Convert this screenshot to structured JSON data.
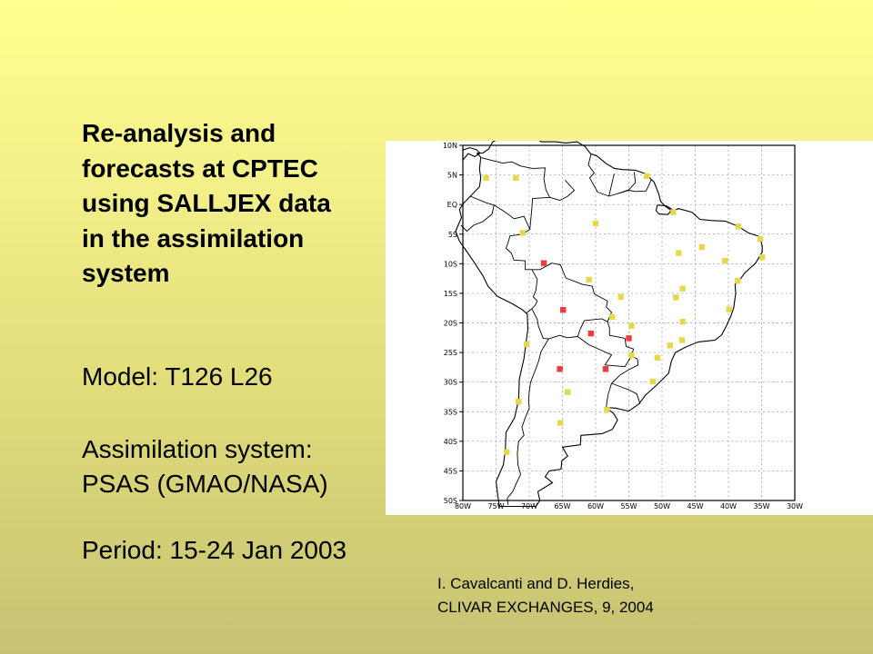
{
  "slide": {
    "title_lines": [
      "Re-analysis and",
      "forecasts at CPTEC",
      "using SALLJEX data",
      "in the assimilation",
      "system"
    ],
    "model": "Model:  T126 L26",
    "assimilation_lines": [
      "Assimilation system:",
      "PSAS (GMAO/NASA)"
    ],
    "period": "Period: 15-24 Jan 2003",
    "citation_lines": [
      "I. Cavalcanti and D. Herdies,",
      "CLIVAR EXCHANGES, 9, 2004"
    ]
  },
  "map": {
    "lat_labels": [
      "10N",
      "5N",
      "EQ",
      "5S",
      "10S",
      "15S",
      "20S",
      "25S",
      "30S",
      "35S",
      "40S",
      "45S",
      "50S"
    ],
    "lon_labels": [
      "80W",
      "75W",
      "70W",
      "65W",
      "60W",
      "55W",
      "50W",
      "45W",
      "40W",
      "35W",
      "30W"
    ],
    "colors": {
      "yellow": "#e6d84a",
      "red": "#ee3b3b"
    },
    "stations": [
      {
        "lon": -76.5,
        "lat": 4.5,
        "c": "yellow"
      },
      {
        "lon": -72,
        "lat": 4.5,
        "c": "yellow"
      },
      {
        "lon": -52.3,
        "lat": 4.8,
        "c": "yellow"
      },
      {
        "lon": -48.3,
        "lat": -1.3,
        "c": "yellow"
      },
      {
        "lon": -60,
        "lat": -3.2,
        "c": "yellow"
      },
      {
        "lon": -71,
        "lat": -4.8,
        "c": "yellow"
      },
      {
        "lon": -38.5,
        "lat": -3.7,
        "c": "yellow"
      },
      {
        "lon": -35.2,
        "lat": -5.8,
        "c": "yellow"
      },
      {
        "lon": -44,
        "lat": -7.2,
        "c": "yellow"
      },
      {
        "lon": -47.5,
        "lat": -8.2,
        "c": "yellow"
      },
      {
        "lon": -40.5,
        "lat": -9.5,
        "c": "yellow"
      },
      {
        "lon": -34.9,
        "lat": -8.9,
        "c": "yellow"
      },
      {
        "lon": -67.8,
        "lat": -9.9,
        "c": "red"
      },
      {
        "lon": -61,
        "lat": -12.7,
        "c": "yellow"
      },
      {
        "lon": -38.6,
        "lat": -12.9,
        "c": "yellow"
      },
      {
        "lon": -46.9,
        "lat": -14.2,
        "c": "yellow"
      },
      {
        "lon": -56.2,
        "lat": -15.6,
        "c": "yellow"
      },
      {
        "lon": -47.9,
        "lat": -15.7,
        "c": "yellow"
      },
      {
        "lon": -64.9,
        "lat": -17.8,
        "c": "red"
      },
      {
        "lon": -39.9,
        "lat": -17.7,
        "c": "yellow"
      },
      {
        "lon": -57.5,
        "lat": -19,
        "c": "yellow"
      },
      {
        "lon": -46.9,
        "lat": -19.8,
        "c": "yellow"
      },
      {
        "lon": -54.6,
        "lat": -20.5,
        "c": "yellow"
      },
      {
        "lon": -60.7,
        "lat": -21.8,
        "c": "red"
      },
      {
        "lon": -55,
        "lat": -22.6,
        "c": "red"
      },
      {
        "lon": -47,
        "lat": -22.9,
        "c": "yellow"
      },
      {
        "lon": -70.4,
        "lat": -23.6,
        "c": "yellow"
      },
      {
        "lon": -48.8,
        "lat": -23.8,
        "c": "yellow"
      },
      {
        "lon": -54.6,
        "lat": -25.5,
        "c": "yellow"
      },
      {
        "lon": -50.7,
        "lat": -25.9,
        "c": "yellow"
      },
      {
        "lon": -65.4,
        "lat": -27.8,
        "c": "red"
      },
      {
        "lon": -58.5,
        "lat": -27.8,
        "c": "red"
      },
      {
        "lon": -51.4,
        "lat": -29.9,
        "c": "yellow"
      },
      {
        "lon": -64.2,
        "lat": -31.7,
        "c": "yellow"
      },
      {
        "lon": -71.6,
        "lat": -33.3,
        "c": "yellow"
      },
      {
        "lon": -58.3,
        "lat": -34.7,
        "c": "yellow"
      },
      {
        "lon": -65.3,
        "lat": -36.9,
        "c": "yellow"
      },
      {
        "lon": -73.4,
        "lat": -41.8,
        "c": "yellow"
      }
    ]
  }
}
